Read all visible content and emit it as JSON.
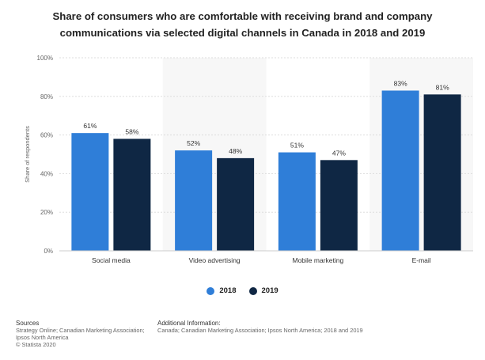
{
  "chart_data": {
    "type": "bar",
    "title_line1": "Share of consumers who are comfortable with receiving brand and company",
    "title_line2": "communications via selected digital channels in Canada in 2018 and 2019",
    "categories": [
      "Social media",
      "Video advertising",
      "Mobile marketing",
      "E-mail"
    ],
    "series": [
      {
        "name": "2018",
        "values": [
          61,
          52,
          51,
          83
        ],
        "labels": [
          "61%",
          "52%",
          "51%",
          "83%"
        ],
        "color": "#2f7ed8"
      },
      {
        "name": "2019",
        "values": [
          58,
          48,
          47,
          81
        ],
        "labels": [
          "58%",
          "48%",
          "47%",
          "81%"
        ],
        "color": "#0f2744"
      }
    ],
    "ylabel": "Share of respondents",
    "ylim": [
      0,
      100
    ],
    "yticks": [
      0,
      20,
      40,
      60,
      80,
      100
    ],
    "ytick_labels": [
      "0%",
      "20%",
      "40%",
      "60%",
      "80%",
      "100%"
    ],
    "legend_position": "bottom-center"
  },
  "footer": {
    "sources_title": "Sources",
    "sources_lines": [
      "Strategy Online; Canadian Marketing Association;",
      "Ipsos North America",
      "© Statista 2020"
    ],
    "info_title": "Additional Information:",
    "info_text": "Canada; Canadian Marketing Association; Ipsos North America; 2018 and 2019"
  }
}
